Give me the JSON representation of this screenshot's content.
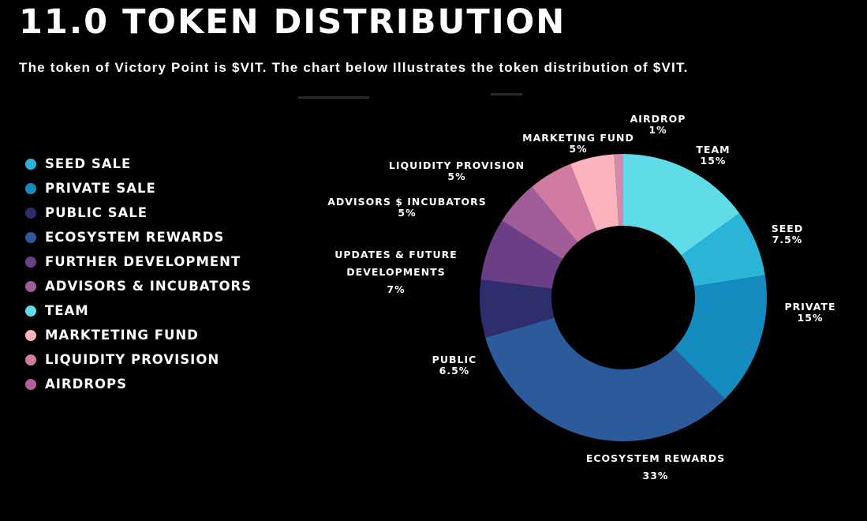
{
  "header": {
    "title": "11.0 TOKEN DISTRIBUTION",
    "subtitle": "The token of Victory Point is $VIT. The chart below Illustrates the token distribution of $VIT."
  },
  "legend": {
    "items": [
      {
        "label": "SEED SALE",
        "color": "#29b4d8"
      },
      {
        "label": "PRIVATE SALE",
        "color": "#168bc0"
      },
      {
        "label": "PUBLIC SALE",
        "color": "#2d2e6b"
      },
      {
        "label": "ECOSYSTEM REWARDS",
        "color": "#2b5b9c"
      },
      {
        "label": "FURTHER DEVELOPMENT",
        "color": "#6a3f86"
      },
      {
        "label": "ADVISORS & INCUBATORS",
        "color": "#a05e98"
      },
      {
        "label": "TEAM",
        "color": "#5fdce8"
      },
      {
        "label": "MARKTETING FUND",
        "color": "#fdb3bd"
      },
      {
        "label": "LIQUIDITY PROVISION",
        "color": "#d17ba3"
      },
      {
        "label": "AIRDROPS",
        "color": "#b45f9a"
      }
    ]
  },
  "chart_data": {
    "type": "pie",
    "donut": true,
    "slices": [
      {
        "key": "team",
        "label_lines": [
          "TEAM",
          "15%"
        ],
        "value": 15,
        "color": "#5fdce8"
      },
      {
        "key": "seed",
        "label_lines": [
          "SEED",
          "7.5%"
        ],
        "value": 7.5,
        "color": "#29b4d8"
      },
      {
        "key": "private",
        "label_lines": [
          "PRIVATE",
          "15%"
        ],
        "value": 15,
        "color": "#168bc0"
      },
      {
        "key": "ecosystem",
        "label_lines": [
          "ECOSYSTEM REWARDS",
          "33%"
        ],
        "value": 33,
        "color": "#2b5b9c"
      },
      {
        "key": "public",
        "label_lines": [
          "PUBLIC",
          "6.5%"
        ],
        "value": 6.5,
        "color": "#2d2e6b"
      },
      {
        "key": "updates",
        "label_lines": [
          "UPDATES & FUTURE",
          "DEVELOPMENTS",
          "7%"
        ],
        "value": 7,
        "color": "#6a3f86"
      },
      {
        "key": "advisors",
        "label_lines": [
          "ADVISORS $ INCUBATORS",
          "5%"
        ],
        "value": 5,
        "color": "#a05e98"
      },
      {
        "key": "liquidity",
        "label_lines": [
          "LIQUIDITY PROVISION",
          "5%"
        ],
        "value": 5,
        "color": "#d17ba3"
      },
      {
        "key": "marketing",
        "label_lines": [
          "MARKETING FUND",
          "5%"
        ],
        "value": 5,
        "color": "#fdb3bd"
      },
      {
        "key": "airdrop",
        "label_lines": [
          "AIRDROP",
          "1%"
        ],
        "value": 1,
        "color": "#d389a8"
      }
    ]
  }
}
